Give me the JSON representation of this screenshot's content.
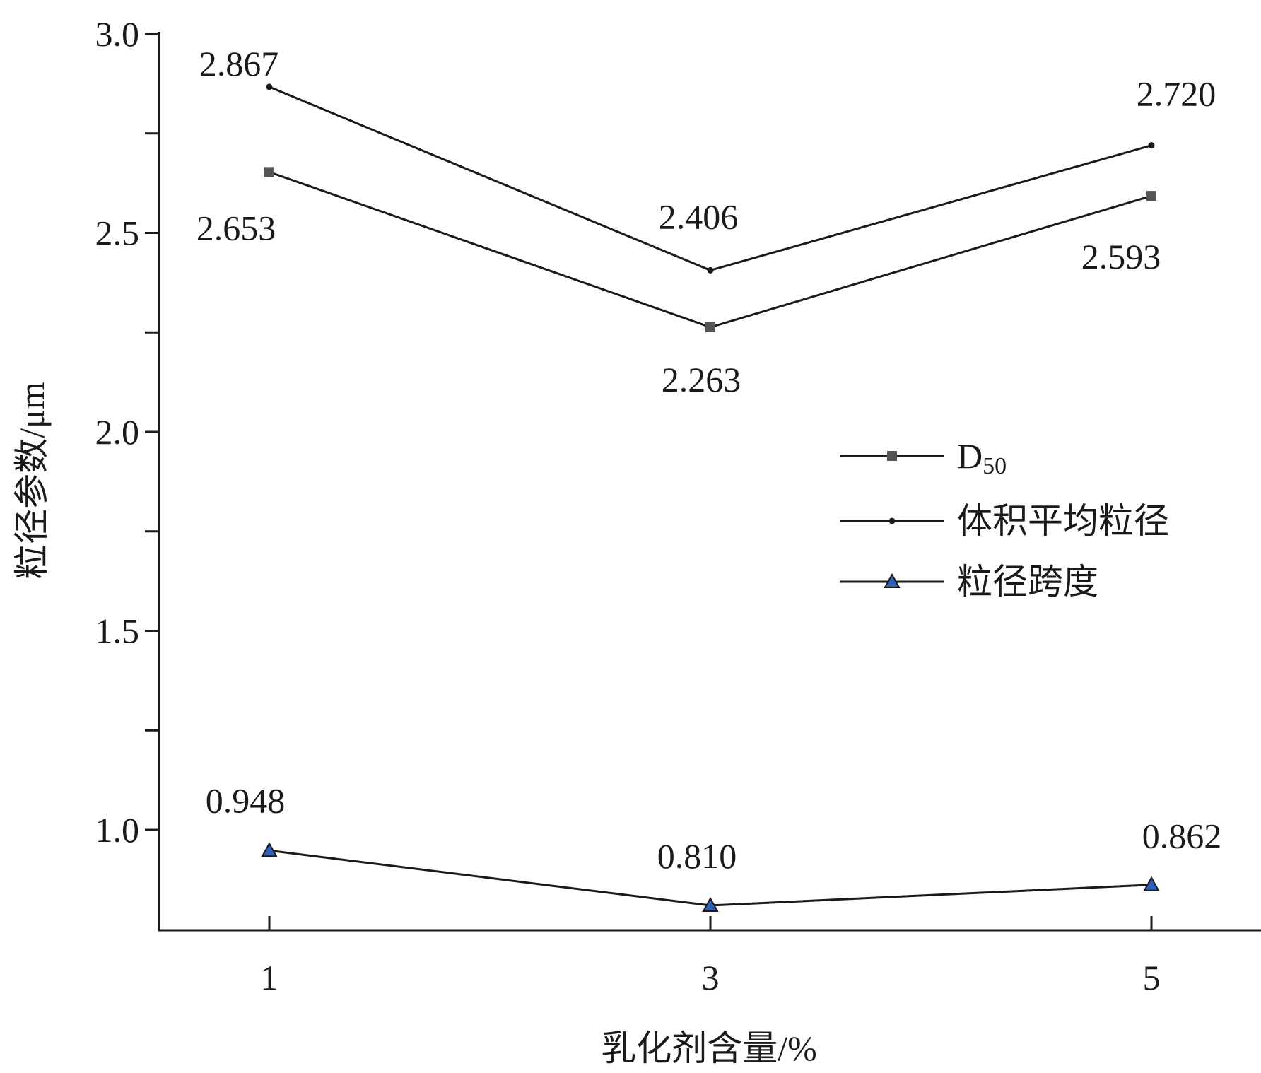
{
  "chart_data": {
    "type": "line",
    "x": [
      1,
      3,
      5
    ],
    "xticks": [
      "1",
      "3",
      "5"
    ],
    "yticks": [
      "1.0",
      "1.5",
      "2.0",
      "2.5",
      "3.0"
    ],
    "xlabel": "乳化剂含量/%",
    "ylabel": "粒径参数/μm",
    "ylim": [
      0.75,
      3.0
    ],
    "grid": false,
    "legend_position": "right-center",
    "series": [
      {
        "name": "D",
        "name_sub": "50",
        "marker": "square",
        "color": "#555555",
        "values": [
          2.653,
          2.263,
          2.593
        ],
        "labels": [
          "2.653",
          "2.263",
          "2.593"
        ],
        "label_position": "below"
      },
      {
        "name": "体积平均粒径",
        "marker": "dot",
        "color": "#1a1a1a",
        "values": [
          2.867,
          2.406,
          2.72
        ],
        "labels": [
          "2.867",
          "2.406",
          "2.720"
        ],
        "label_position": "above"
      },
      {
        "name": "粒径跨度",
        "marker": "triangle",
        "color": "#2f5fb8",
        "values": [
          0.948,
          0.81,
          0.862
        ],
        "labels": [
          "0.948",
          "0.810",
          "0.862"
        ],
        "label_position": "above"
      }
    ]
  }
}
